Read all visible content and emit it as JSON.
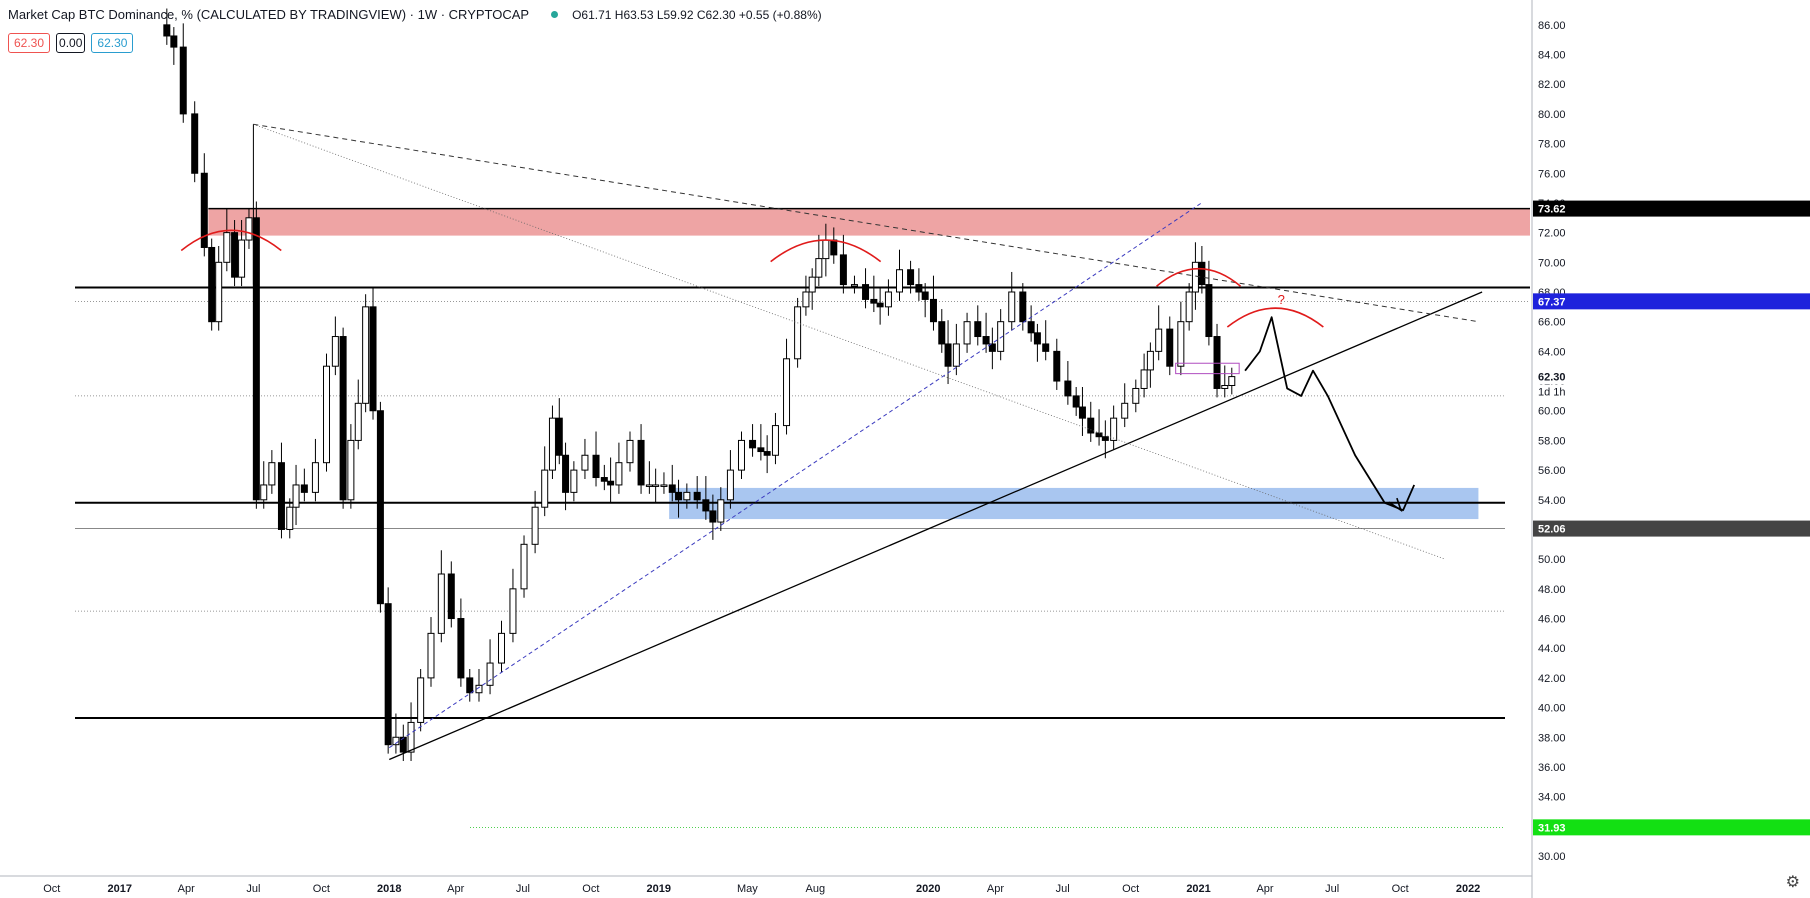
{
  "header": {
    "title": "Market Cap BTC Dominance, % (CALCULATED BY TRADINGVIEW) · 1W · CRYPTOCAP",
    "ohlc": "O61.71 H63.53 L59.92 C62.30 +0.55 (+0.88%)",
    "badge_sell": "62.30",
    "badge_spread": "0.00",
    "badge_buy": "62.30"
  },
  "chart_data": {
    "type": "candlestick",
    "y_axis": {
      "min": 30,
      "max": 87,
      "ticks": [
        "30.00",
        "32.00",
        "34.00",
        "36.00",
        "38.00",
        "40.00",
        "42.00",
        "44.00",
        "46.00",
        "48.00",
        "50.00",
        "52.00",
        "54.00",
        "56.00",
        "58.00",
        "60.00",
        "62.00",
        "64.00",
        "66.00",
        "68.00",
        "70.00",
        "72.00",
        "74.00",
        "76.00",
        "78.00",
        "80.00",
        "82.00",
        "84.00",
        "86.00"
      ],
      "price_labels": [
        {
          "text": "73.62",
          "value": 73.62,
          "color": "#000000"
        },
        {
          "text": "67.37",
          "value": 67.37,
          "color": "#1e22dc"
        },
        {
          "text": "62.30",
          "value": 62.3,
          "color": "#ffffff",
          "fg": "#131722"
        },
        {
          "text": "52.06",
          "value": 52.06,
          "color": "#444444"
        },
        {
          "text": "31.93",
          "value": 31.93,
          "color": "#13e013"
        }
      ],
      "countdown": "1d 1h"
    },
    "x_axis": {
      "start": "2016-09-15",
      "end": "2022-02-20",
      "ticks": [
        {
          "label": "Oct",
          "date": "2016-10-01"
        },
        {
          "label": "2017",
          "date": "2017-01-01",
          "bold": true
        },
        {
          "label": "Apr",
          "date": "2017-04-01"
        },
        {
          "label": "Jul",
          "date": "2017-07-01"
        },
        {
          "label": "Oct",
          "date": "2017-10-01"
        },
        {
          "label": "2018",
          "date": "2018-01-01",
          "bold": true
        },
        {
          "label": "Apr",
          "date": "2018-04-01"
        },
        {
          "label": "Jul",
          "date": "2018-07-01"
        },
        {
          "label": "Oct",
          "date": "2018-10-01"
        },
        {
          "label": "2019",
          "date": "2019-01-01",
          "bold": true
        },
        {
          "label": "May",
          "date": "2019-05-01"
        },
        {
          "label": "Aug",
          "date": "2019-08-01"
        },
        {
          "label": "2020",
          "date": "2020-01-01",
          "bold": true
        },
        {
          "label": "Apr",
          "date": "2020-04-01"
        },
        {
          "label": "Jul",
          "date": "2020-07-01"
        },
        {
          "label": "Oct",
          "date": "2020-10-01"
        },
        {
          "label": "2021",
          "date": "2021-01-01",
          "bold": true
        },
        {
          "label": "Apr",
          "date": "2021-04-01"
        },
        {
          "label": "Jul",
          "date": "2021-07-01"
        },
        {
          "label": "Oct",
          "date": "2021-10-01"
        },
        {
          "label": "2022",
          "date": "2022-01-01",
          "bold": true
        }
      ]
    },
    "colors": {
      "up": "#ffffff",
      "down": "#000000",
      "wick": "#000000",
      "resistance_zone": "#eea4a4",
      "support_zone": "#a9c6f0",
      "arc": "#e01b1b"
    },
    "close_path": [
      [
        "2017-03-01",
        86.0
      ],
      [
        "2017-03-20",
        84.5
      ],
      [
        "2017-04-05",
        80.0
      ],
      [
        "2017-04-20",
        76.0
      ],
      [
        "2017-05-01",
        71.0
      ],
      [
        "2017-05-10",
        66.0
      ],
      [
        "2017-05-20",
        70.0
      ],
      [
        "2017-06-01",
        72.0
      ],
      [
        "2017-06-10",
        69.0
      ],
      [
        "2017-06-20",
        71.5
      ],
      [
        "2017-06-30",
        73.0
      ],
      [
        "2017-07-10",
        54.0
      ],
      [
        "2017-07-20",
        55.0
      ],
      [
        "2017-08-01",
        56.5
      ],
      [
        "2017-08-15",
        52.0
      ],
      [
        "2017-09-01",
        55.0
      ],
      [
        "2017-09-15",
        54.5
      ],
      [
        "2017-10-01",
        56.5
      ],
      [
        "2017-10-15",
        63.0
      ],
      [
        "2017-10-25",
        65.0
      ],
      [
        "2017-11-05",
        54.0
      ],
      [
        "2017-11-15",
        58.0
      ],
      [
        "2017-11-25",
        60.5
      ],
      [
        "2017-12-05",
        67.0
      ],
      [
        "2017-12-15",
        60.0
      ],
      [
        "2017-12-25",
        47.0
      ],
      [
        "2018-01-05",
        37.5
      ],
      [
        "2018-01-15",
        38.0
      ],
      [
        "2018-01-25",
        37.0
      ],
      [
        "2018-02-05",
        39.0
      ],
      [
        "2018-02-20",
        42.0
      ],
      [
        "2018-03-05",
        45.0
      ],
      [
        "2018-03-20",
        49.0
      ],
      [
        "2018-04-01",
        46.0
      ],
      [
        "2018-04-15",
        42.0
      ],
      [
        "2018-04-25",
        41.0
      ],
      [
        "2018-05-10",
        41.5
      ],
      [
        "2018-05-25",
        43.0
      ],
      [
        "2018-06-10",
        45.0
      ],
      [
        "2018-06-25",
        48.0
      ],
      [
        "2018-07-10",
        51.0
      ],
      [
        "2018-07-25",
        53.5
      ],
      [
        "2018-08-05",
        56.0
      ],
      [
        "2018-08-15",
        59.5
      ],
      [
        "2018-09-01",
        54.5
      ],
      [
        "2018-09-15",
        56.0
      ],
      [
        "2018-10-01",
        57.0
      ],
      [
        "2018-10-15",
        55.5
      ],
      [
        "2018-11-01",
        55.0
      ],
      [
        "2018-11-15",
        56.5
      ],
      [
        "2018-12-01",
        58.0
      ],
      [
        "2018-12-15",
        55.0
      ],
      [
        "2019-01-01",
        55.0
      ],
      [
        "2019-01-15",
        55.0
      ],
      [
        "2019-02-01",
        54.0
      ],
      [
        "2019-02-15",
        54.5
      ],
      [
        "2019-03-01",
        54.0
      ],
      [
        "2019-03-20",
        52.5
      ],
      [
        "2019-04-01",
        54.0
      ],
      [
        "2019-04-15",
        56.0
      ],
      [
        "2019-05-01",
        58.0
      ],
      [
        "2019-05-15",
        57.5
      ],
      [
        "2019-06-01",
        57.0
      ],
      [
        "2019-06-15",
        59.0
      ],
      [
        "2019-07-01",
        63.5
      ],
      [
        "2019-07-15",
        67.0
      ],
      [
        "2019-08-01",
        69.0
      ],
      [
        "2019-08-20",
        71.5
      ],
      [
        "2019-09-01",
        70.5
      ],
      [
        "2019-09-15",
        68.5
      ],
      [
        "2019-10-01",
        68.5
      ],
      [
        "2019-10-15",
        67.5
      ],
      [
        "2019-11-01",
        67.0
      ],
      [
        "2019-11-15",
        68.0
      ],
      [
        "2019-12-01",
        69.5
      ],
      [
        "2019-12-15",
        68.5
      ],
      [
        "2020-01-01",
        67.5
      ],
      [
        "2020-01-15",
        66.0
      ],
      [
        "2020-02-01",
        63.0
      ],
      [
        "2020-02-15",
        64.5
      ],
      [
        "2020-03-01",
        66.0
      ],
      [
        "2020-03-15",
        65.0
      ],
      [
        "2020-04-01",
        64.0
      ],
      [
        "2020-04-15",
        66.0
      ],
      [
        "2020-05-01",
        68.0
      ],
      [
        "2020-05-15",
        66.0
      ],
      [
        "2020-06-01",
        64.5
      ],
      [
        "2020-06-15",
        64.0
      ],
      [
        "2020-07-01",
        62.0
      ],
      [
        "2020-07-15",
        61.0
      ],
      [
        "2020-08-01",
        59.5
      ],
      [
        "2020-08-15",
        58.5
      ],
      [
        "2020-09-01",
        58.0
      ],
      [
        "2020-09-15",
        59.5
      ],
      [
        "2020-10-01",
        60.5
      ],
      [
        "2020-10-15",
        61.5
      ],
      [
        "2020-11-01",
        64.0
      ],
      [
        "2020-11-15",
        65.5
      ],
      [
        "2020-12-01",
        63.0
      ],
      [
        "2020-12-15",
        66.0
      ],
      [
        "2021-01-01",
        70.0
      ],
      [
        "2021-01-10",
        68.5
      ],
      [
        "2021-01-20",
        65.0
      ],
      [
        "2021-02-01",
        61.5
      ],
      [
        "2021-02-10",
        61.7
      ],
      [
        "2021-02-20",
        62.3
      ]
    ],
    "drawings": {
      "horizontal_lines": [
        68.3,
        53.8,
        39.3
      ],
      "dotted_lines": [
        67.37,
        61.0,
        52.06,
        46.5,
        31.93
      ],
      "resistance_zone": [
        71.8,
        73.62
      ],
      "support_zone": [
        52.7,
        54.8
      ],
      "annotation": "?"
    }
  }
}
